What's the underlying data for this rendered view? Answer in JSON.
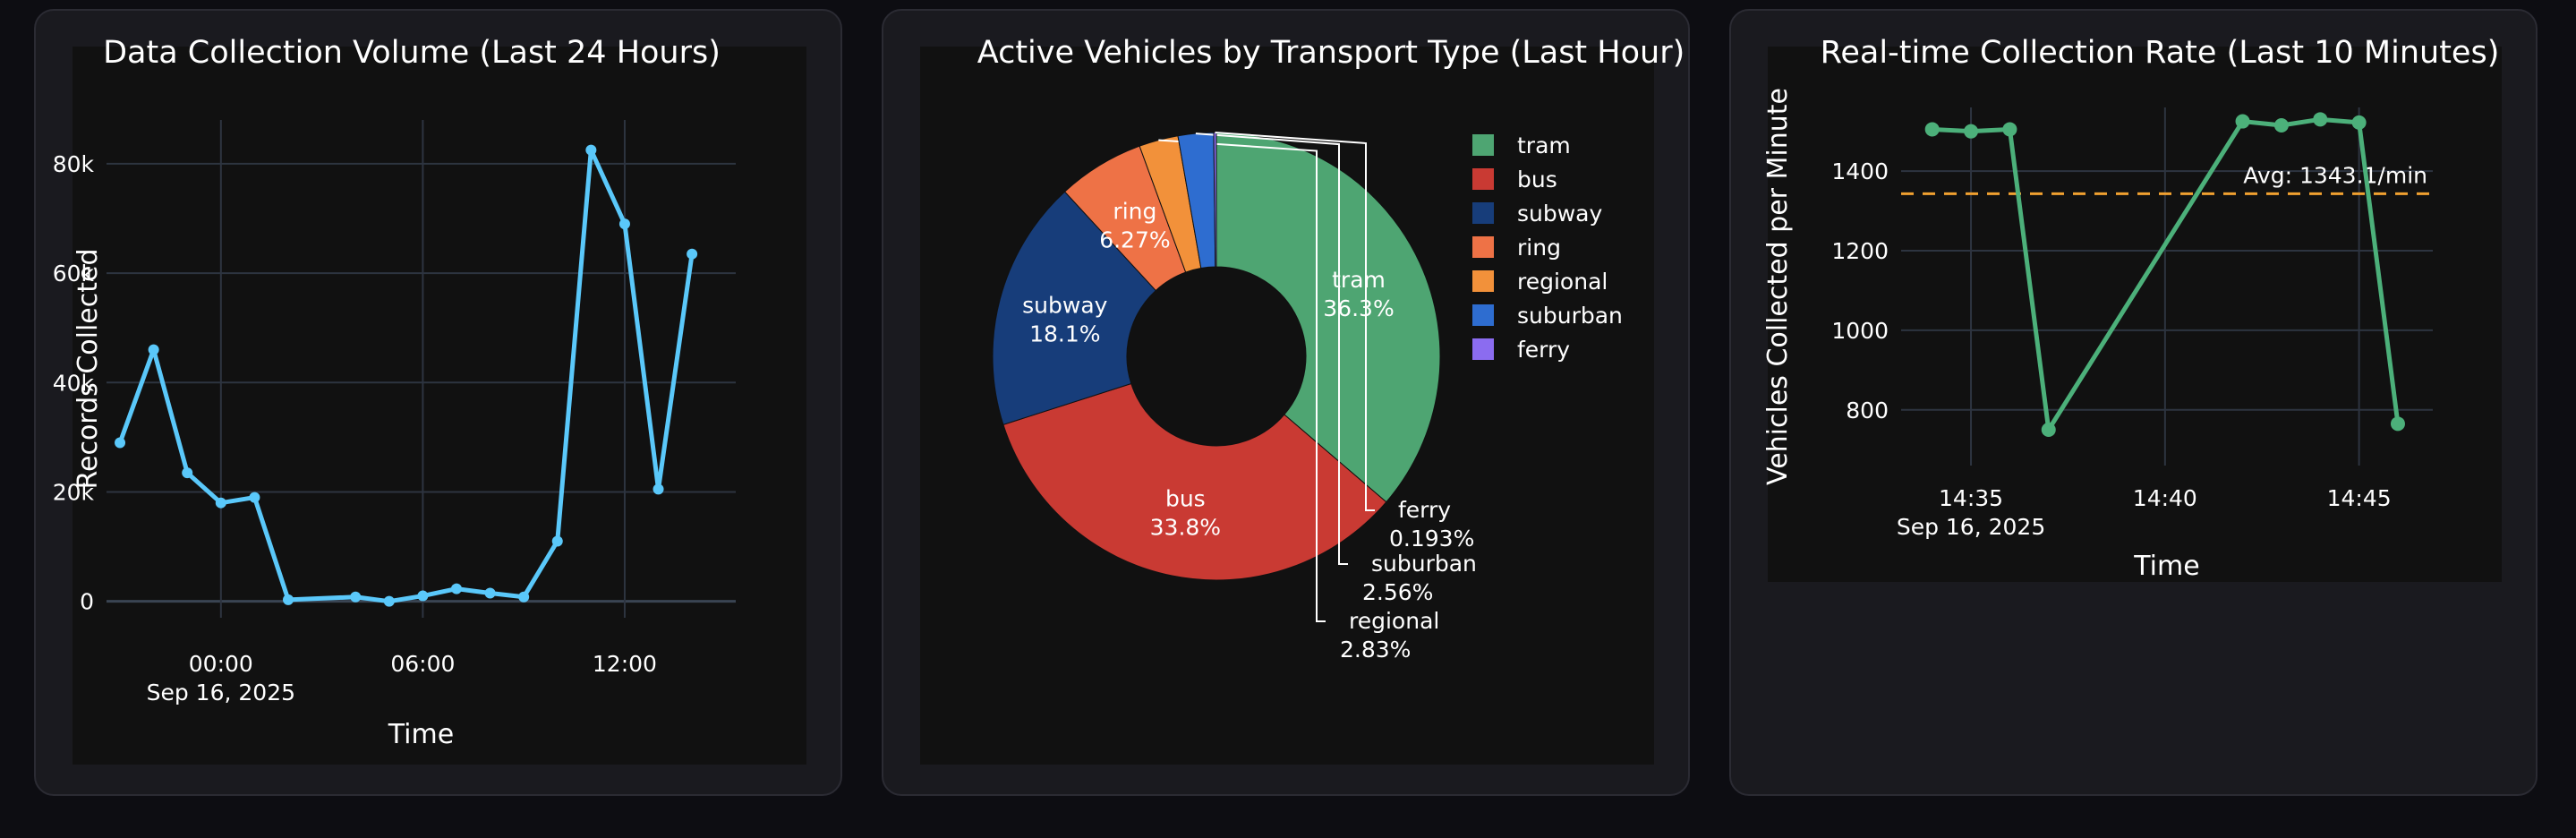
{
  "colors": {
    "page_bg": "#0d0d12",
    "card_bg": "#1a1a1f",
    "plot_bg": "#111111",
    "line_blue": "#5ac8fa",
    "line_green": "#4cb07a",
    "avg_line": "#f0a030"
  },
  "chart_data": [
    {
      "type": "line",
      "title": "Data Collection Volume (Last 24 Hours)",
      "xlabel": "Time",
      "ylabel": "Records Collected",
      "x_ticks": [
        {
          "x": 0,
          "label": "00:00",
          "sublabel": "Sep 16, 2025"
        },
        {
          "x": 6,
          "label": "06:00",
          "sublabel": ""
        },
        {
          "x": 12,
          "label": "12:00",
          "sublabel": ""
        }
      ],
      "y_ticks": [
        {
          "y": 0,
          "label": "0"
        },
        {
          "y": 20000,
          "label": "20k"
        },
        {
          "y": 40000,
          "label": "40k"
        },
        {
          "y": 60000,
          "label": "60k"
        },
        {
          "y": 80000,
          "label": "80k"
        }
      ],
      "xlim": [
        -3.4,
        15.3
      ],
      "ylim": [
        -3000,
        88000
      ],
      "grid": true,
      "series": [
        {
          "x": [
            "Sep 15 21:00",
            "Sep 15 22:00",
            "Sep 15 23:00",
            "Sep 16 00:00",
            "Sep 16 01:00",
            "Sep 16 02:00",
            "Sep 16 04:00",
            "Sep 16 05:00",
            "Sep 16 06:00",
            "Sep 16 07:00",
            "Sep 16 08:00",
            "Sep 16 09:00",
            "Sep 16 10:00",
            "Sep 16 11:00",
            "Sep 16 12:00",
            "Sep 16 13:00",
            "Sep 16 14:00"
          ],
          "hours": [
            -3,
            -2,
            -1,
            0,
            1,
            2,
            4,
            5,
            6,
            7,
            8,
            9,
            10,
            11,
            12,
            13,
            14
          ],
          "values": [
            29000,
            46000,
            23500,
            18000,
            19000,
            300,
            800,
            0,
            1000,
            2300,
            1500,
            800,
            11000,
            82500,
            69000,
            20500,
            63500
          ]
        }
      ]
    },
    {
      "type": "pie",
      "hole": true,
      "title": "Active Vehicles by Transport Type (Last Hour)",
      "legend_position": "top-right",
      "slices": [
        {
          "label": "tram",
          "value": 36.3,
          "text": "36.3%",
          "color": "#4ea572"
        },
        {
          "label": "bus",
          "value": 33.8,
          "text": "33.8%",
          "color": "#c93a33"
        },
        {
          "label": "subway",
          "value": 18.1,
          "text": "18.1%",
          "color": "#173d7a"
        },
        {
          "label": "ring",
          "value": 6.27,
          "text": "6.27%",
          "color": "#ee7246"
        },
        {
          "label": "regional",
          "value": 2.83,
          "text": "2.83%",
          "color": "#f2913a"
        },
        {
          "label": "suburban",
          "value": 2.56,
          "text": "2.56%",
          "color": "#2e6dd0"
        },
        {
          "label": "ferry",
          "value": 0.193,
          "text": "0.193%",
          "color": "#8b6cf0"
        }
      ]
    },
    {
      "type": "line",
      "title": "Real-time Collection Rate (Last 10 Minutes)",
      "xlabel": "Time",
      "ylabel": "Vehicles Collected per Minute",
      "x_ticks": [
        {
          "x": 35,
          "label": "14:35",
          "sublabel": "Sep 16, 2025"
        },
        {
          "x": 40,
          "label": "14:40",
          "sublabel": ""
        },
        {
          "x": 45,
          "label": "14:45",
          "sublabel": ""
        }
      ],
      "y_ticks": [
        {
          "y": 800,
          "label": "800"
        },
        {
          "y": 1000,
          "label": "1000"
        },
        {
          "y": 1200,
          "label": "1200"
        },
        {
          "y": 1400,
          "label": "1400"
        }
      ],
      "xlim": [
        33.2,
        46.9
      ],
      "ylim": [
        660,
        1560
      ],
      "grid": true,
      "avg": {
        "value": 1343.1,
        "label": "Avg: 1343.1/min"
      },
      "series": [
        {
          "x": [
            "14:34",
            "14:35",
            "14:36",
            "14:37",
            "14:42",
            "14:43",
            "14:44",
            "14:45",
            "14:46"
          ],
          "minutes": [
            34,
            35,
            36,
            37,
            42,
            43,
            44,
            45,
            46
          ],
          "values": [
            1505,
            1500,
            1505,
            750,
            1525,
            1515,
            1530,
            1522,
            765
          ]
        }
      ]
    }
  ]
}
